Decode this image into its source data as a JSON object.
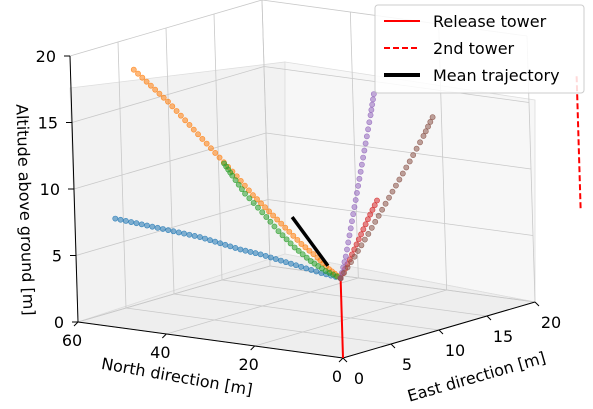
{
  "chart_data": {
    "type": "scatter",
    "projection": "3d",
    "xlabel": "North direction [m]",
    "ylabel": "East direction [m]",
    "zlabel": "Altitude above ground [m]",
    "x_ticks": [
      "0",
      "20",
      "40",
      "60"
    ],
    "y_ticks": [
      "0",
      "5",
      "10",
      "15",
      "20"
    ],
    "z_ticks": [
      "0",
      "5",
      "10",
      "15",
      "20"
    ],
    "xlim": [
      0,
      60
    ],
    "ylim": [
      0,
      20
    ],
    "zlim": [
      0,
      20
    ],
    "grid": true,
    "legend_position": "top-right",
    "legend": [
      {
        "label": "Release tower",
        "style": "solid",
        "color": "#ff0000"
      },
      {
        "label": "2nd tower",
        "style": "dashed",
        "color": "#ff0000"
      },
      {
        "label": "Mean trajectory",
        "style": "solid-thick",
        "color": "#000000"
      }
    ],
    "series": [
      {
        "color": "#1f77b4",
        "points": [
          [
            0,
            0,
            6.0
          ],
          [
            5,
            0.3,
            6.1
          ],
          [
            10,
            0.5,
            6.3
          ],
          [
            15,
            0.7,
            6.5
          ],
          [
            20,
            0.9,
            6.7
          ],
          [
            25,
            1.1,
            6.8
          ],
          [
            30,
            1.3,
            7.0
          ],
          [
            35,
            1.5,
            7.2
          ],
          [
            40,
            1.6,
            7.3
          ],
          [
            45,
            1.7,
            7.4
          ],
          [
            50,
            1.8,
            7.5
          ],
          [
            55,
            1.9,
            7.6
          ]
        ]
      },
      {
        "color": "#ff7f0e",
        "points": [
          [
            0,
            0,
            6.0
          ],
          [
            3,
            0.2,
            6.5
          ],
          [
            6,
            0.4,
            7.2
          ],
          [
            10,
            0.6,
            8.0
          ],
          [
            14,
            0.8,
            9.0
          ],
          [
            18,
            1.0,
            10.0
          ],
          [
            22,
            1.2,
            11.0
          ],
          [
            26,
            1.4,
            12.2
          ],
          [
            30,
            1.5,
            13.4
          ],
          [
            34,
            1.6,
            14.6
          ],
          [
            38,
            1.7,
            15.8
          ],
          [
            42,
            1.8,
            17.0
          ],
          [
            46,
            1.9,
            18.0
          ],
          [
            50,
            2.0,
            19.0
          ]
        ]
      },
      {
        "color": "#2ca02c",
        "points": [
          [
            0,
            0,
            6.0
          ],
          [
            4,
            0.3,
            6.3
          ],
          [
            8,
            0.6,
            6.8
          ],
          [
            12,
            0.8,
            7.6
          ],
          [
            16,
            1.0,
            8.6
          ],
          [
            20,
            1.2,
            9.8
          ],
          [
            24,
            1.3,
            11.0
          ],
          [
            27,
            1.4,
            12.2
          ],
          [
            29,
            1.5,
            13.0
          ]
        ]
      },
      {
        "color": "#d62728",
        "points": [
          [
            0,
            0,
            6.0
          ],
          [
            0,
            1,
            7.2
          ],
          [
            0,
            2,
            8.5
          ],
          [
            0,
            3,
            9.8
          ],
          [
            0,
            4,
            11.0
          ]
        ]
      },
      {
        "color": "#9467bd",
        "points": [
          [
            0,
            0,
            6.0
          ],
          [
            0,
            0.6,
            7.5
          ],
          [
            0,
            1.2,
            9.5
          ],
          [
            0,
            1.8,
            11.5
          ],
          [
            0,
            2.4,
            13.5
          ],
          [
            0,
            3.0,
            15.5
          ],
          [
            0,
            3.6,
            17.5
          ],
          [
            0,
            4.0,
            19.0
          ]
        ]
      },
      {
        "color": "#8c564b",
        "points": [
          [
            0,
            0,
            6.0
          ],
          [
            0,
            1.5,
            7.3
          ],
          [
            0,
            3.0,
            8.7
          ],
          [
            0,
            4.5,
            10.2
          ],
          [
            0,
            6.0,
            11.7
          ],
          [
            0,
            7.5,
            13.2
          ],
          [
            0,
            9.0,
            14.8
          ],
          [
            0,
            10.0,
            16.0
          ]
        ]
      }
    ],
    "mean_trajectory": [
      [
        5,
        1,
        6.5
      ],
      [
        10,
        1.5,
        8.0
      ],
      [
        15,
        2,
        9.5
      ]
    ],
    "towers": [
      {
        "name": "Release tower",
        "x": 0,
        "y": 0,
        "z_range": [
          0,
          6
        ]
      },
      {
        "name": "2nd tower",
        "x": 0,
        "y": 25,
        "z_range": [
          6,
          16
        ]
      }
    ]
  }
}
